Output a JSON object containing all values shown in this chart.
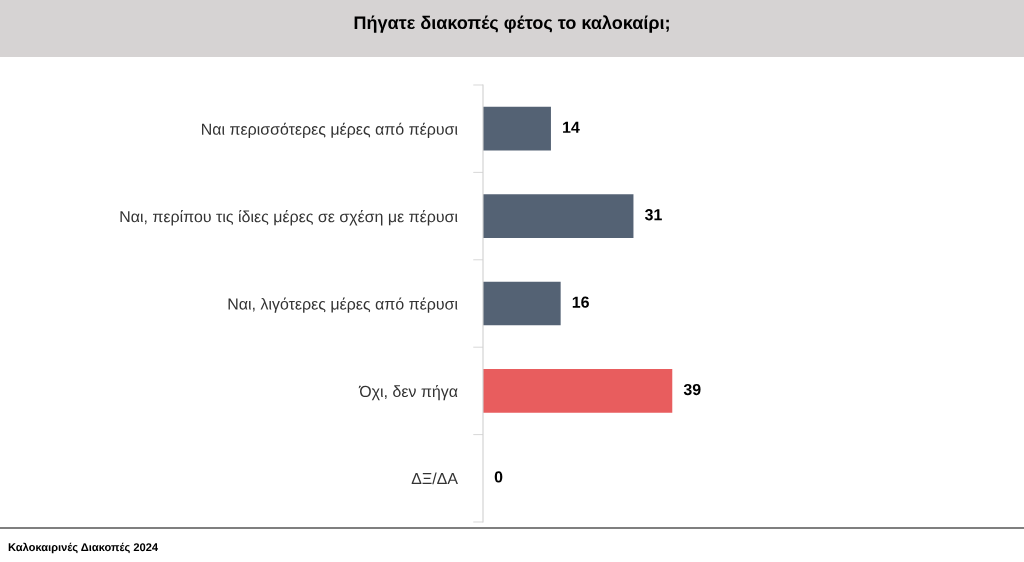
{
  "chart_data": {
    "type": "bar",
    "orientation": "horizontal",
    "title": "Πήγατε διακοπές φέτος το καλοκαίρι;",
    "categories": [
      "Ναι περισσότερες μέρες από πέρυσι",
      "Ναι, περίπου τις ίδιες μέρες σε σχέση με πέρυσι",
      "Ναι, λιγότερες μέρες από πέρυσι",
      "Όχι, δεν πήγα",
      "ΔΞ/ΔΑ"
    ],
    "values": [
      14,
      31,
      16,
      39,
      0
    ],
    "colors": [
      "#546274",
      "#546274",
      "#546274",
      "#e85d5e",
      "#546274"
    ],
    "data_labels": true,
    "grid": false,
    "legend": false,
    "tick_labels": "y",
    "annotations": [
      "Καλοκαιρινές Διακοπές 2024"
    ]
  }
}
